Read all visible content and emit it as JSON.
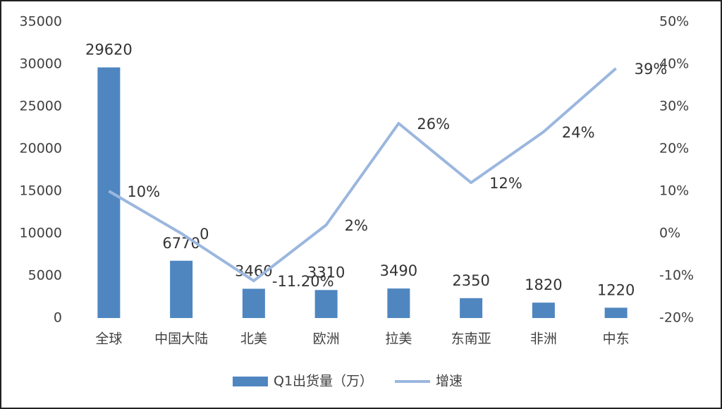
{
  "chart_data": {
    "type": "bar_line",
    "categories": [
      "全球",
      "中国大陆",
      "北美",
      "欧洲",
      "拉美",
      "东南亚",
      "非洲",
      "中东"
    ],
    "series": [
      {
        "name": "Q1出货量（万）",
        "type": "bar",
        "color": "#4f86c0",
        "values": [
          29620,
          6770,
          3460,
          3310,
          3490,
          2350,
          1820,
          1220
        ]
      },
      {
        "name": "增速",
        "type": "line",
        "axis": "y2",
        "color": "#9bb7df",
        "values": [
          10,
          0,
          -11.2,
          2,
          26,
          12,
          24,
          39
        ],
        "value_labels": [
          "10%",
          "0",
          "-11.20%",
          "2%",
          "26%",
          "12%",
          "24%",
          "39%"
        ]
      }
    ],
    "ylim": [
      0,
      35000
    ],
    "yticks": [
      0,
      5000,
      10000,
      15000,
      20000,
      25000,
      30000,
      35000
    ],
    "y2lim": [
      -20,
      50
    ],
    "y2ticks": [
      {
        "value": -20,
        "label": "-20%"
      },
      {
        "value": -10,
        "label": "-10%"
      },
      {
        "value": 0,
        "label": "0%"
      },
      {
        "value": 10,
        "label": "10%"
      },
      {
        "value": 20,
        "label": "20%"
      },
      {
        "value": 30,
        "label": "30%"
      },
      {
        "value": 40,
        "label": "40%"
      },
      {
        "value": 50,
        "label": "50%"
      }
    ],
    "grid": false,
    "legend": "bottom"
  }
}
